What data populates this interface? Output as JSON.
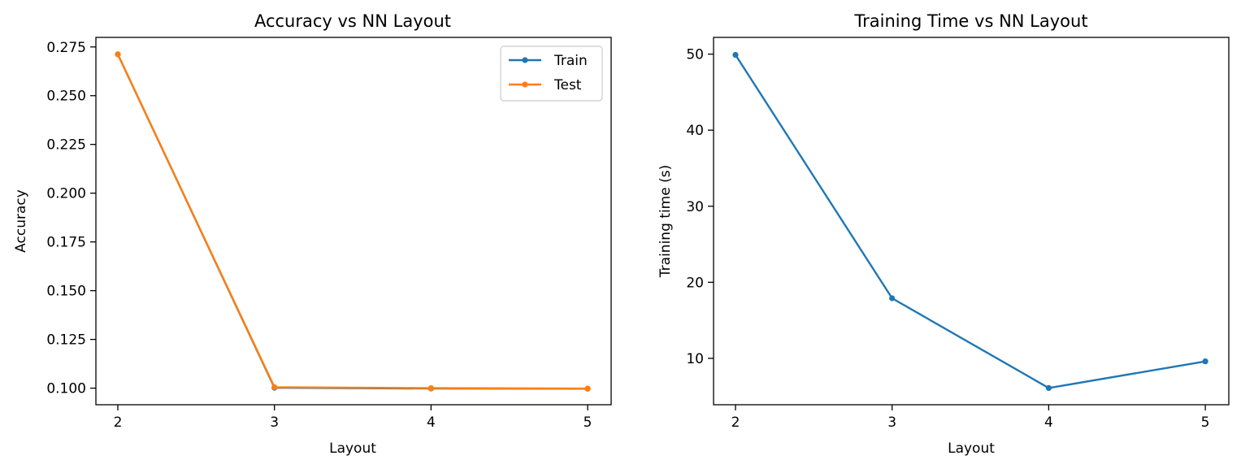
{
  "chart_data": [
    {
      "type": "line",
      "title": "Accuracy vs NN Layout",
      "xlabel": "Layout",
      "ylabel": "Accuracy",
      "x": [
        2,
        3,
        4,
        5
      ],
      "xticks": [
        "2",
        "3",
        "4",
        "5"
      ],
      "xlim": [
        1.86,
        5.15
      ],
      "ylim": [
        0.0915,
        0.2799
      ],
      "yticks": [
        0.1,
        0.125,
        0.15,
        0.175,
        0.2,
        0.225,
        0.25,
        0.275
      ],
      "yticklabels": [
        "0.100",
        "0.125",
        "0.150",
        "0.175",
        "0.200",
        "0.225",
        "0.250",
        "0.275"
      ],
      "grid": false,
      "legend_position": "top-right",
      "series": [
        {
          "name": "Train",
          "values": [
            0.2712,
            0.1002,
            0.0998,
            0.0997
          ],
          "color": "#1f77b4"
        },
        {
          "name": "Test",
          "values": [
            0.2712,
            0.1005,
            0.1,
            0.0998
          ],
          "color": "#ff7f0e"
        }
      ]
    },
    {
      "type": "line",
      "title": "Training Time vs NN Layout",
      "xlabel": "Layout",
      "ylabel": "Training time (s)",
      "x": [
        2,
        3,
        4,
        5
      ],
      "xticks": [
        "2",
        "3",
        "4",
        "5"
      ],
      "xlim": [
        1.86,
        5.15
      ],
      "ylim": [
        3.9,
        52.2
      ],
      "yticks": [
        10,
        20,
        30,
        40,
        50
      ],
      "yticklabels": [
        "10",
        "20",
        "30",
        "40",
        "50"
      ],
      "grid": false,
      "series": [
        {
          "values": [
            49.9,
            17.9,
            6.1,
            9.6
          ],
          "color": "#1f77b4"
        }
      ]
    }
  ]
}
